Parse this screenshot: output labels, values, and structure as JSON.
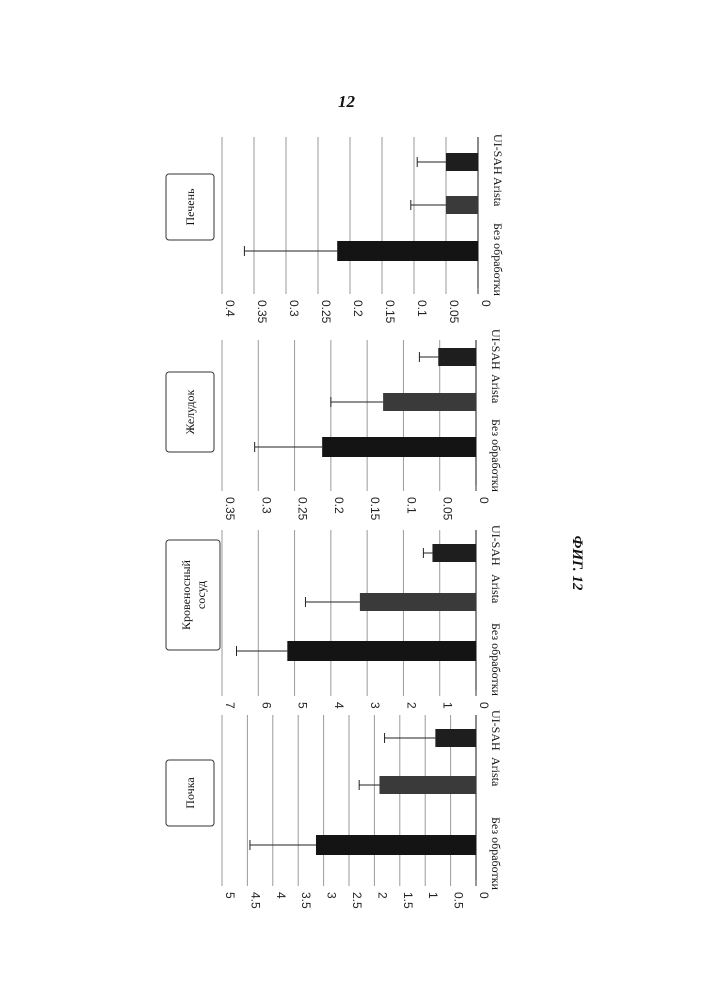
{
  "page_number": "12",
  "figure_label": "ФИГ. 12",
  "chart_data": [
    {
      "type": "bar",
      "title": "Печень",
      "categories": [
        "Без обработки",
        "Arista",
        "UI-SAH"
      ],
      "values": [
        0.22,
        0.05,
        0.05
      ],
      "errors": [
        0.145,
        0.055,
        0.045
      ],
      "ylim": [
        0,
        0.4
      ],
      "ticks": [
        "0",
        "0.05",
        "0.1",
        "0.15",
        "0.2",
        "0.25",
        "0.3",
        "0.35",
        "0.4"
      ],
      "colors": [
        "#141414",
        "#3a3a3a",
        "#1e1e1e"
      ],
      "grid": true
    },
    {
      "type": "bar",
      "title": "Желудок",
      "categories": [
        "Без обработки",
        "Arista",
        "UI-SAH"
      ],
      "values": [
        0.212,
        0.128,
        0.052
      ],
      "errors": [
        0.093,
        0.072,
        0.026
      ],
      "ylim": [
        0,
        0.35
      ],
      "ticks": [
        "0",
        "0.05",
        "0.1",
        "0.15",
        "0.2",
        "0.25",
        "0.3",
        "0.35"
      ],
      "colors": [
        "#141414",
        "#3a3a3a",
        "#1e1e1e"
      ],
      "grid": true
    },
    {
      "type": "bar",
      "title": "Кровеносный сосуд",
      "categories": [
        "Без обработки",
        "Arista",
        "UI-SAH"
      ],
      "values": [
        5.2,
        3.2,
        1.2
      ],
      "errors": [
        1.4,
        1.5,
        0.25
      ],
      "ylim": [
        0,
        7
      ],
      "ticks": [
        "0",
        "1",
        "2",
        "3",
        "4",
        "5",
        "6",
        "7"
      ],
      "colors": [
        "#141414",
        "#3a3a3a",
        "#1e1e1e"
      ],
      "grid": true
    },
    {
      "type": "bar",
      "title": "Почка",
      "categories": [
        "Без обработки",
        "Arista",
        "UI-SAH"
      ],
      "values": [
        3.15,
        1.9,
        0.8
      ],
      "errors": [
        1.3,
        0.4,
        1.0
      ],
      "ylim": [
        0,
        5
      ],
      "ticks": [
        "0",
        "0.5",
        "1",
        "1.5",
        "2",
        "2.5",
        "3",
        "3.5",
        "4",
        "4.5",
        "5"
      ],
      "colors": [
        "#141414",
        "#3a3a3a",
        "#1e1e1e"
      ],
      "grid": true
    }
  ]
}
